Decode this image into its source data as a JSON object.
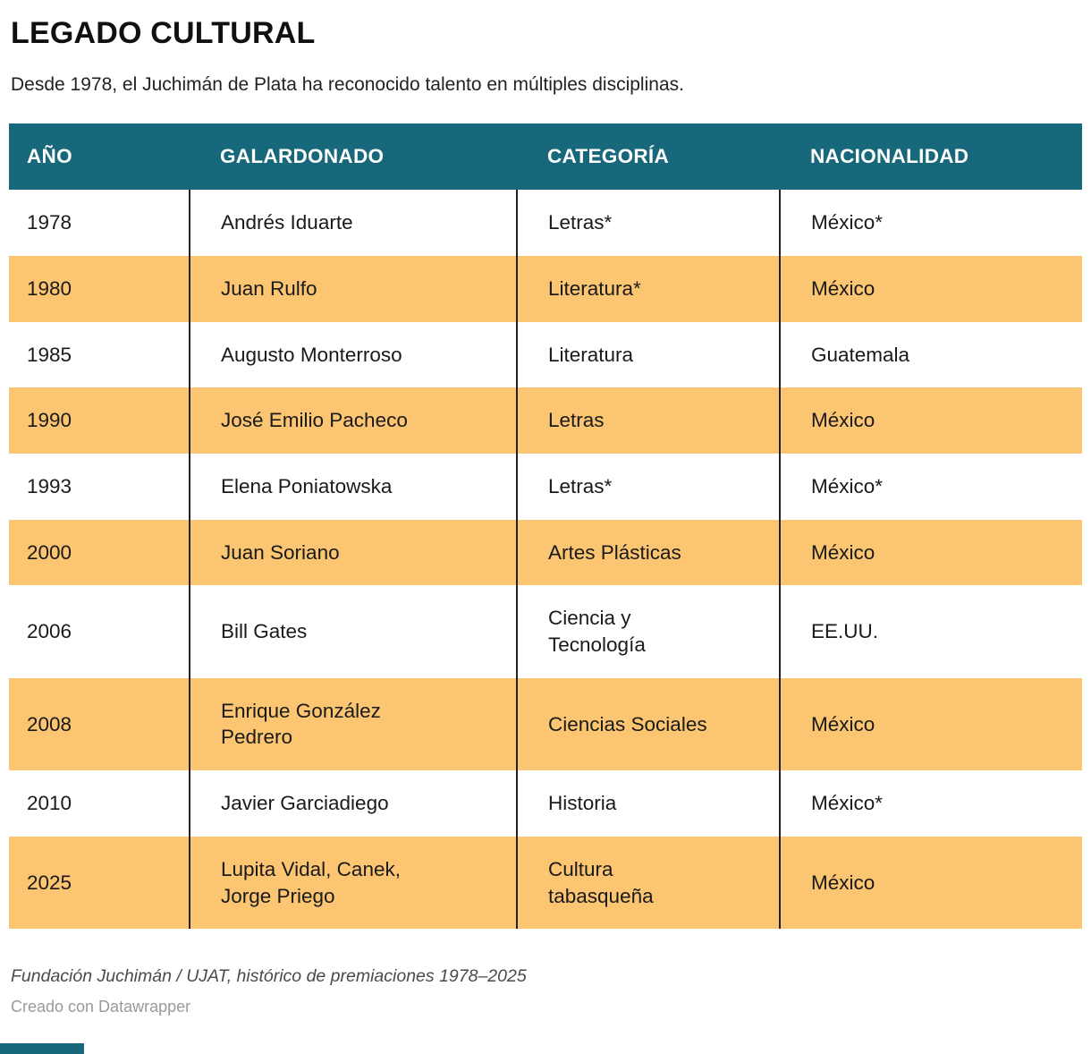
{
  "chart_data": {
    "type": "table",
    "title": "LEGADO CULTURAL",
    "subtitle": "Desde 1978, el Juchimán de Plata ha reconocido talento en múltiples disciplinas.",
    "columns": [
      "AÑO",
      "GALARDONADO",
      "CATEGORÍA",
      "NACIONALIDAD"
    ],
    "rows": [
      {
        "ano": "1978",
        "galardonado": "Andrés Iduarte",
        "categoria": "Letras*",
        "nacionalidad": "México*"
      },
      {
        "ano": "1980",
        "galardonado": "Juan Rulfo",
        "categoria": "Literatura*",
        "nacionalidad": "México"
      },
      {
        "ano": "1985",
        "galardonado": "Augusto Monterroso",
        "categoria": "Literatura",
        "nacionalidad": "Guatemala"
      },
      {
        "ano": "1990",
        "galardonado": "José Emilio Pacheco",
        "categoria": "Letras",
        "nacionalidad": "México"
      },
      {
        "ano": "1993",
        "galardonado": "Elena Poniatowska",
        "categoria": "Letras*",
        "nacionalidad": "México*"
      },
      {
        "ano": "2000",
        "galardonado": "Juan Soriano",
        "categoria": "Artes Plásticas",
        "nacionalidad": "México"
      },
      {
        "ano": "2006",
        "galardonado": "Bill Gates",
        "categoria": "Ciencia y\nTecnología",
        "nacionalidad": "EE.UU."
      },
      {
        "ano": "2008",
        "galardonado": "Enrique González\nPedrero",
        "categoria": "Ciencias Sociales",
        "nacionalidad": "México"
      },
      {
        "ano": "2010",
        "galardonado": "Javier Garciadiego",
        "categoria": "Historia",
        "nacionalidad": "México*"
      },
      {
        "ano": "2025",
        "galardonado": "Lupita Vidal, Canek,\nJorge Priego",
        "categoria": "Cultura\ntabasqueña",
        "nacionalidad": "México"
      }
    ],
    "source": "Fundación Juchimán / UJAT, histórico de premiaciones 1978–2025",
    "credit": "Creado con Datawrapper",
    "legend_position": "none",
    "grid": "column-dividers"
  },
  "colors": {
    "headerBg": "#18687c",
    "headerText": "#ffffff",
    "rowAltBg": "#fbc571",
    "divider": "#222222"
  }
}
